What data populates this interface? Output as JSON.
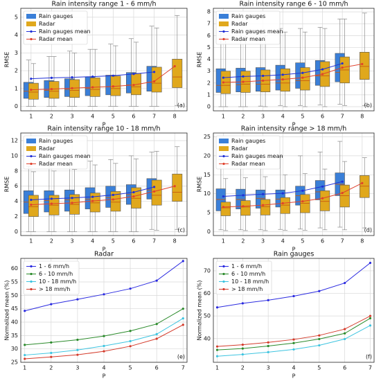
{
  "chart_data": [
    {
      "type": "box",
      "title": "Rain intensity range 1 - 6 mm/h",
      "xlabel": "P",
      "ylabel": "RMSE",
      "panel_label": "(a)",
      "grid": true,
      "legend": "upper left",
      "categories": [
        "1",
        "2",
        "3",
        "4",
        "5",
        "6",
        "7",
        "8"
      ],
      "ylim": [
        -0.25,
        5.5
      ],
      "yticks": [
        0,
        1,
        2,
        3,
        4,
        5
      ],
      "series": [
        {
          "name": "Rain gauges",
          "color": "#3a7fd8",
          "low": [
            0,
            0,
            0,
            0,
            0,
            0,
            0,
            null
          ],
          "q1": [
            0.45,
            0.5,
            0.55,
            0.6,
            0.65,
            0.75,
            0.85,
            null
          ],
          "median": [
            0.85,
            0.9,
            0.95,
            1.0,
            1.1,
            1.2,
            1.35,
            null
          ],
          "q3": [
            1.35,
            1.45,
            1.55,
            1.65,
            1.75,
            1.9,
            2.25,
            null
          ],
          "high": [
            2.6,
            2.8,
            3.1,
            3.2,
            3.5,
            3.8,
            4.5,
            null
          ]
        },
        {
          "name": "Radar",
          "color": "#e0a81c",
          "low": [
            0,
            0,
            0,
            0,
            0,
            0,
            0,
            0.05
          ],
          "q1": [
            0.4,
            0.45,
            0.5,
            0.55,
            0.6,
            0.65,
            0.8,
            1.05
          ],
          "median": [
            0.8,
            0.85,
            0.9,
            0.95,
            1.0,
            1.1,
            1.3,
            1.65
          ],
          "q3": [
            1.3,
            1.4,
            1.5,
            1.6,
            1.7,
            1.85,
            2.2,
            2.65
          ],
          "high": [
            2.4,
            2.8,
            3.0,
            3.2,
            3.4,
            3.6,
            4.4,
            5.1
          ]
        }
      ],
      "mean_series": [
        {
          "name": "Rain gauges mean",
          "color": "#1f2fd6",
          "values": [
            1.55,
            1.6,
            1.63,
            1.67,
            1.72,
            1.82,
            1.93,
            null
          ]
        },
        {
          "name": "Radar mean",
          "color": "#e0412c",
          "values": [
            0.93,
            0.97,
            1.02,
            1.07,
            1.12,
            1.2,
            1.4,
            2.25
          ]
        }
      ]
    },
    {
      "type": "box",
      "title": "Rain intensity range 6 - 10 mm/h",
      "xlabel": "P",
      "ylabel": "RMSE",
      "panel_label": "(b)",
      "grid": true,
      "legend": "upper left",
      "categories": [
        "1",
        "2",
        "3",
        "4",
        "5",
        "6",
        "7",
        "8"
      ],
      "ylim": [
        -0.35,
        8.3
      ],
      "yticks": [
        0,
        1,
        2,
        3,
        4,
        5,
        6,
        7,
        8
      ],
      "series": [
        {
          "name": "Rain gauges",
          "color": "#3a7fd8",
          "low": [
            0,
            0,
            0.05,
            0.1,
            0.1,
            0.15,
            0.2,
            null
          ],
          "q1": [
            1.2,
            1.25,
            1.3,
            1.4,
            1.55,
            1.8,
            2.1,
            null
          ],
          "median": [
            1.8,
            1.85,
            1.9,
            2.0,
            2.2,
            2.6,
            2.9,
            null
          ],
          "q3": [
            3.2,
            3.25,
            3.3,
            3.5,
            3.7,
            3.9,
            4.5,
            null
          ],
          "high": [
            6.4,
            6.2,
            6.3,
            6.6,
            6.6,
            6.7,
            7.4,
            null
          ]
        },
        {
          "name": "Radar",
          "color": "#e0a81c",
          "low": [
            0,
            0,
            0,
            0,
            0,
            0,
            0.1,
            0.1
          ],
          "q1": [
            1.1,
            1.2,
            1.25,
            1.3,
            1.4,
            1.7,
            2.0,
            2.3
          ],
          "median": [
            1.8,
            1.9,
            1.9,
            2.0,
            2.2,
            2.6,
            3.1,
            3.4
          ],
          "q3": [
            3.0,
            3.0,
            3.1,
            3.2,
            3.3,
            3.8,
            4.2,
            4.6
          ],
          "high": [
            5.8,
            5.9,
            6.0,
            6.3,
            6.3,
            6.6,
            7.4,
            7.9
          ]
        }
      ],
      "mean_series": [
        {
          "name": "Rain gauges mean",
          "color": "#1f2fd6",
          "values": [
            2.45,
            2.55,
            2.6,
            2.7,
            2.85,
            3.15,
            3.65,
            null
          ]
        },
        {
          "name": "Radar mean",
          "color": "#e0412c",
          "values": [
            2.05,
            2.1,
            2.2,
            2.3,
            2.45,
            2.75,
            3.3,
            3.6
          ]
        }
      ]
    },
    {
      "type": "box",
      "title": "Rain intensity range 10 - 18 mm/h",
      "xlabel": "P",
      "ylabel": "RMSE",
      "panel_label": "(c)",
      "grid": true,
      "legend": "upper left",
      "categories": [
        "1",
        "2",
        "3",
        "4",
        "5",
        "6",
        "7",
        "8"
      ],
      "ylim": [
        -0.5,
        13
      ],
      "yticks": [
        0,
        2,
        4,
        6,
        8,
        10,
        12
      ],
      "series": [
        {
          "name": "Rain gauges",
          "color": "#3a7fd8",
          "low": [
            0,
            0,
            0,
            0,
            0,
            0,
            0.3,
            null
          ],
          "q1": [
            2.4,
            2.6,
            2.7,
            3.0,
            3.2,
            3.6,
            4.3,
            null
          ],
          "median": [
            3.9,
            4.1,
            4.2,
            4.3,
            4.5,
            4.9,
            5.5,
            null
          ],
          "q3": [
            5.4,
            5.4,
            5.5,
            5.8,
            6.0,
            6.2,
            7.0,
            null
          ],
          "high": [
            8.6,
            8.6,
            8.8,
            9.3,
            9.5,
            10,
            10.5,
            null
          ]
        },
        {
          "name": "Radar",
          "color": "#e0a81c",
          "low": [
            0,
            0,
            0,
            0,
            0,
            0,
            0.2,
            0.3
          ],
          "q1": [
            2.0,
            2.2,
            2.3,
            2.6,
            2.7,
            3.1,
            3.5,
            4.0
          ],
          "median": [
            3.3,
            3.5,
            3.6,
            3.8,
            3.9,
            4.4,
            4.8,
            5.2
          ],
          "q3": [
            4.8,
            4.8,
            4.9,
            5.1,
            5.3,
            5.8,
            6.8,
            7.6
          ],
          "high": [
            7.9,
            8,
            8.2,
            8.8,
            9,
            9.6,
            10.6,
            11.2
          ]
        }
      ],
      "mean_series": [
        {
          "name": "Rain gauges mean",
          "color": "#1f2fd6",
          "values": [
            4.2,
            4.35,
            4.45,
            4.6,
            4.85,
            5.2,
            5.9,
            null
          ]
        },
        {
          "name": "Radar mean",
          "color": "#e0412c",
          "values": [
            3.55,
            3.7,
            3.8,
            4.05,
            4.25,
            4.65,
            5.3,
            6.0
          ]
        }
      ]
    },
    {
      "type": "box",
      "title": "Rain intensity range > 18 mm/h",
      "xlabel": "P",
      "ylabel": "RMSE",
      "panel_label": "(d)",
      "grid": true,
      "legend": "upper left",
      "categories": [
        "1",
        "2",
        "3",
        "4",
        "5",
        "6",
        "7",
        "8"
      ],
      "ylim": [
        -1,
        26
      ],
      "yticks": [
        0,
        5,
        10,
        15,
        20,
        25
      ],
      "series": [
        {
          "name": "Rain gauges",
          "color": "#3a7fd8",
          "low": [
            0.5,
            0.5,
            0.5,
            0.6,
            0.7,
            1,
            1.2,
            null
          ],
          "q1": [
            5.5,
            6,
            6.2,
            6.5,
            7,
            8.4,
            9.5,
            null
          ],
          "median": [
            8.5,
            8.5,
            8.8,
            8.6,
            9.5,
            10.5,
            12.5,
            null
          ],
          "q3": [
            11.3,
            11.2,
            11,
            11,
            12,
            13.5,
            15.5,
            null
          ],
          "high": [
            19,
            19.3,
            19.5,
            19.8,
            20,
            21,
            23.8,
            null
          ]
        },
        {
          "name": "Radar",
          "color": "#e0a81c",
          "low": [
            0.3,
            0.3,
            0.3,
            0.4,
            0.4,
            0.5,
            0.5,
            1
          ],
          "q1": [
            4.2,
            4.3,
            4.4,
            4.8,
            5,
            5.5,
            6.5,
            9
          ],
          "median": [
            6.3,
            6.5,
            6.6,
            7,
            7.5,
            8,
            9.5,
            12
          ],
          "q3": [
            7.8,
            8.2,
            8.5,
            9,
            9.8,
            10.8,
            12.3,
            14.8
          ],
          "high": [
            14,
            14.2,
            14.5,
            15,
            15.3,
            16.5,
            18.5,
            19.5
          ]
        }
      ],
      "mean_series": [
        {
          "name": "Rain gauges mean",
          "color": "#1f2fd6",
          "values": [
            9.3,
            9.6,
            9.9,
            10.1,
            10.8,
            11.9,
            13.2,
            null
          ]
        },
        {
          "name": "Radar mean",
          "color": "#e0412c",
          "values": [
            6.5,
            6.7,
            7.0,
            7.5,
            8.0,
            8.8,
            10.2,
            12.8
          ]
        }
      ]
    },
    {
      "type": "line",
      "title": "Radar",
      "xlabel": "P",
      "ylabel": "Normalized mean (%)",
      "panel_label": "(e)",
      "grid": true,
      "legend": "upper left",
      "x": [
        1,
        2,
        3,
        4,
        5,
        6,
        7
      ],
      "xlim": [
        0.85,
        7.15
      ],
      "xticks": [
        1,
        2,
        3,
        4,
        5,
        6,
        7
      ],
      "ylim": [
        25,
        63.8
      ],
      "yticks": [
        25,
        30,
        35,
        40,
        45,
        50,
        55,
        60
      ],
      "series": [
        {
          "name": "1 - 6 mm/h",
          "color": "#2a2ae0",
          "values": [
            44.2,
            46.7,
            48.5,
            50.4,
            52.5,
            55.5,
            62.8
          ]
        },
        {
          "name": "6 - 10 mm/h",
          "color": "#2a8a2a",
          "values": [
            31.5,
            32.4,
            33.4,
            34.8,
            36.7,
            39.3,
            45
          ]
        },
        {
          "name": "10 - 18 mm/h",
          "color": "#3cc4e0",
          "values": [
            27.7,
            28.5,
            29.6,
            31.1,
            32.9,
            35.5,
            41.4
          ]
        },
        {
          "name": "> 18 mm/h",
          "color": "#d43a2a",
          "values": [
            26.3,
            27.0,
            27.8,
            29.1,
            31.0,
            33.8,
            39
          ]
        }
      ]
    },
    {
      "type": "line",
      "title": "Rain gauges",
      "xlabel": "P",
      "ylabel": "Normalized mean (%)",
      "panel_label": "(f)",
      "grid": true,
      "legend": "upper left",
      "x": [
        1,
        2,
        3,
        4,
        5,
        6,
        7
      ],
      "xlim": [
        0.85,
        7.15
      ],
      "xticks": [
        1,
        2,
        3,
        4,
        5,
        6,
        7
      ],
      "ylim": [
        29.5,
        75.5
      ],
      "yticks": [
        40,
        50,
        60,
        70
      ],
      "series": [
        {
          "name": "1 - 6 mm/h",
          "color": "#2a2ae0",
          "values": [
            53.8,
            55.6,
            57.0,
            58.8,
            61.0,
            64.6,
            73.5
          ]
        },
        {
          "name": "6 - 10 mm/h",
          "color": "#2a8a2a",
          "values": [
            35.0,
            35.6,
            36.7,
            38.0,
            39.8,
            42.3,
            49
          ]
        },
        {
          "name": "10 - 18 mm/h",
          "color": "#3cc4e0",
          "values": [
            32.2,
            33.0,
            34.0,
            35.2,
            37.0,
            39.8,
            45.8
          ]
        },
        {
          "name": "> 18 mm/h",
          "color": "#d43a2a",
          "values": [
            36.5,
            37.3,
            38.3,
            39.6,
            41.4,
            44.2,
            50
          ]
        }
      ]
    }
  ]
}
